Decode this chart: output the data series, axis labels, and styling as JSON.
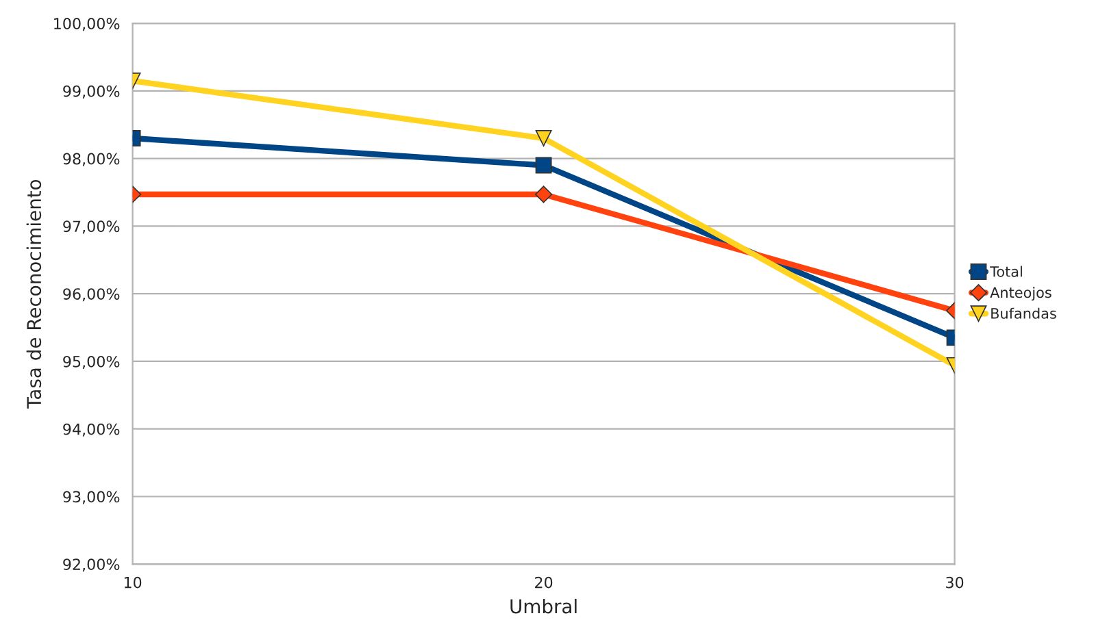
{
  "chart_data": {
    "type": "line",
    "xlabel": "Umbral",
    "ylabel": "Tasa de Reconocimiento",
    "x": [
      10,
      20,
      30
    ],
    "series": [
      {
        "name": "Total",
        "color": "#004586",
        "values": [
          98.3,
          97.9,
          95.35
        ],
        "marker": "square"
      },
      {
        "name": "Anteojos",
        "color": "#ff420e",
        "values": [
          97.47,
          97.47,
          95.75
        ],
        "marker": "diamond"
      },
      {
        "name": "Bufandas",
        "color": "#ffd320",
        "values": [
          99.15,
          98.3,
          94.94
        ],
        "marker": "triangle"
      }
    ],
    "xlim": [
      10,
      30
    ],
    "xticks": [
      10,
      20,
      30
    ],
    "ylim": [
      92,
      100
    ],
    "yticks": [
      {
        "value": 92,
        "label": "92,00%"
      },
      {
        "value": 93,
        "label": "93,00%"
      },
      {
        "value": 94,
        "label": "94,00%"
      },
      {
        "value": 95,
        "label": "95,00%"
      },
      {
        "value": 96,
        "label": "96,00%"
      },
      {
        "value": 97,
        "label": "97,00%"
      },
      {
        "value": 98,
        "label": "98,00%"
      },
      {
        "value": 99,
        "label": "99,00%"
      },
      {
        "value": 100,
        "label": "100,00%"
      }
    ],
    "grid": "y",
    "legend": "right",
    "line_style": "solid"
  }
}
